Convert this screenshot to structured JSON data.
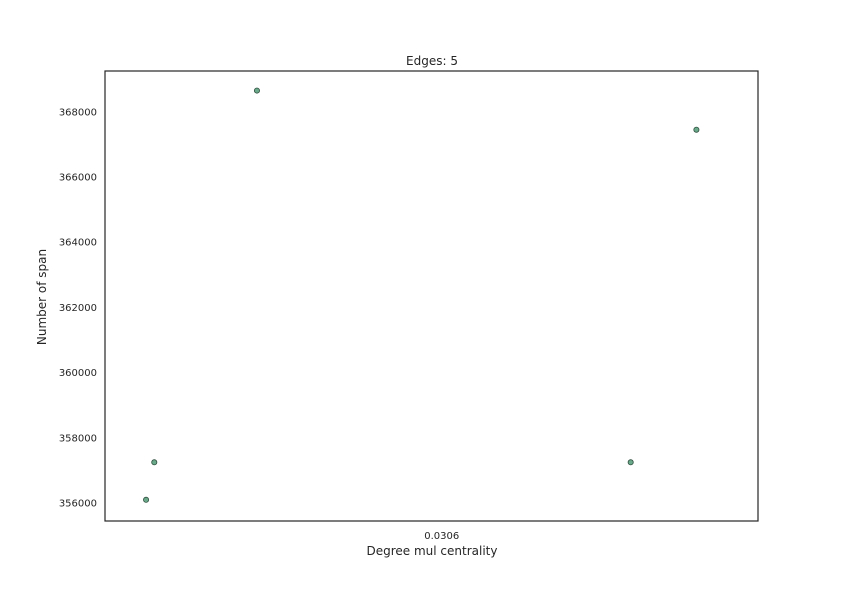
{
  "chart_data": {
    "type": "scatter",
    "title": "Edges: 5",
    "xlabel": "Degree mul centrality",
    "ylabel": "Number of span",
    "x_ticks": [
      {
        "value": 0.0306,
        "label": "0.0306"
      }
    ],
    "y_ticks": [
      356000,
      358000,
      360000,
      362000,
      364000,
      366000,
      368000
    ],
    "xlim": [
      0.030518,
      0.030677
    ],
    "ylim": [
      355450,
      369250
    ],
    "grid": false,
    "legend": "none",
    "point_color": "#6aaa8a",
    "points": [
      {
        "x": 0.030528,
        "y": 356100
      },
      {
        "x": 0.03053,
        "y": 357250
      },
      {
        "x": 0.030555,
        "y": 368650
      },
      {
        "x": 0.030646,
        "y": 357250
      },
      {
        "x": 0.030662,
        "y": 367450
      }
    ]
  }
}
